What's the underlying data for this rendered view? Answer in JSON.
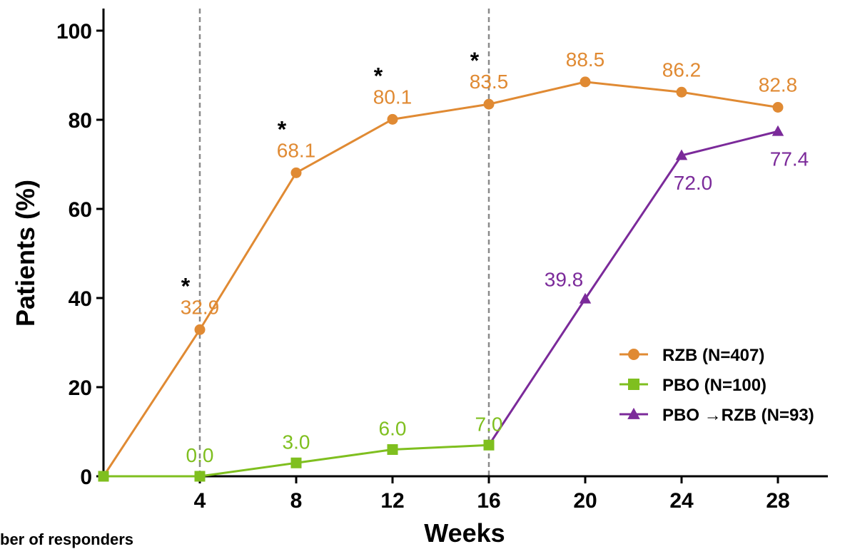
{
  "chart_data": {
    "type": "line",
    "xlabel": "Weeks",
    "ylabel": "Patients (%)",
    "xlim": [
      0,
      30
    ],
    "ylim": [
      0,
      100
    ],
    "x_ticks": [
      4,
      8,
      12,
      16,
      20,
      24,
      28
    ],
    "y_ticks": [
      0,
      20,
      40,
      60,
      80,
      100
    ],
    "reference_lines_x": [
      4,
      16
    ],
    "grid": false,
    "legend_position": "right",
    "series": [
      {
        "name": "RZB (N=407)",
        "color": "#E08A33",
        "marker": "circle",
        "points": [
          {
            "x": 0,
            "y": 0,
            "label": ""
          },
          {
            "x": 4,
            "y": 32.9,
            "label": "32.9",
            "significant": true
          },
          {
            "x": 8,
            "y": 68.1,
            "label": "68.1",
            "significant": true
          },
          {
            "x": 12,
            "y": 80.1,
            "label": "80.1",
            "significant": true
          },
          {
            "x": 16,
            "y": 83.5,
            "label": "83.5",
            "significant": true
          },
          {
            "x": 20,
            "y": 88.5,
            "label": "88.5"
          },
          {
            "x": 24,
            "y": 86.2,
            "label": "86.2"
          },
          {
            "x": 28,
            "y": 82.8,
            "label": "82.8"
          }
        ]
      },
      {
        "name": "PBO (N=100)",
        "color": "#7FBF1F",
        "marker": "square",
        "points": [
          {
            "x": 0,
            "y": 0,
            "label": ""
          },
          {
            "x": 4,
            "y": 0.0,
            "label": "0.0"
          },
          {
            "x": 8,
            "y": 3.0,
            "label": "3.0"
          },
          {
            "x": 12,
            "y": 6.0,
            "label": "6.0"
          },
          {
            "x": 16,
            "y": 7.0,
            "label": "7.0"
          }
        ]
      },
      {
        "name": "PBO →RZB (N=93)",
        "color": "#7B2A9A",
        "marker": "triangle",
        "points": [
          {
            "x": 16,
            "y": 7.0,
            "label": ""
          },
          {
            "x": 20,
            "y": 39.8,
            "label": "39.8"
          },
          {
            "x": 24,
            "y": 72.0,
            "label": "72.0"
          },
          {
            "x": 28,
            "y": 77.4,
            "label": "77.4"
          }
        ]
      }
    ],
    "significance_marker": "*",
    "footnote": "ber of responders"
  }
}
